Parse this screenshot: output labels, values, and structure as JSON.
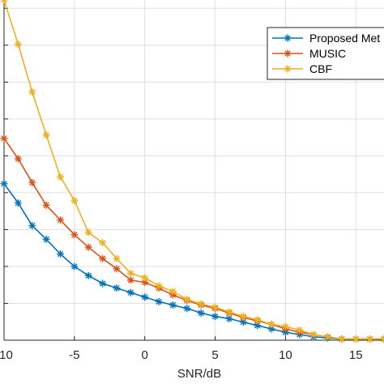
{
  "chart_data": {
    "type": "line",
    "xlabel": "SNR/dB",
    "ylabel": "",
    "xlim": [
      -10,
      17
    ],
    "ylim": [
      0,
      3
    ],
    "xticks": [
      -10,
      -5,
      0,
      5,
      10,
      15
    ],
    "xtick_labels": [
      "-10",
      "-5",
      "0",
      "5",
      "10",
      "15"
    ],
    "grid": true,
    "legend_position": "top-right",
    "x": [
      -10,
      -9,
      -8,
      -7,
      -6,
      -5,
      -4,
      -3,
      -2,
      -1,
      0,
      1,
      2,
      3,
      4,
      5,
      6,
      7,
      8,
      9,
      10,
      11,
      12,
      13,
      14,
      15,
      16,
      17
    ],
    "series": [
      {
        "name": "Proposed Met",
        "color": "#0072BD",
        "marker": "asterisk",
        "values": [
          1.38,
          1.21,
          1.01,
          0.89,
          0.76,
          0.65,
          0.57,
          0.5,
          0.46,
          0.42,
          0.38,
          0.34,
          0.31,
          0.28,
          0.24,
          0.21,
          0.19,
          0.16,
          0.13,
          0.1,
          0.07,
          0.05,
          0.03,
          0.02,
          0.01,
          0.01,
          0.01,
          0.01
        ]
      },
      {
        "name": "MUSIC",
        "color": "#D95319",
        "marker": "asterisk",
        "values": [
          1.78,
          1.6,
          1.39,
          1.19,
          1.06,
          0.93,
          0.82,
          0.72,
          0.63,
          0.53,
          0.51,
          0.46,
          0.4,
          0.35,
          0.31,
          0.28,
          0.24,
          0.2,
          0.17,
          0.14,
          0.1,
          0.07,
          0.05,
          0.03,
          0.01,
          0.01,
          0.01,
          0.01
        ]
      },
      {
        "name": "CBF",
        "color": "#EDB120",
        "marker": "asterisk",
        "values": [
          3.0,
          2.61,
          2.19,
          1.81,
          1.44,
          1.23,
          0.95,
          0.86,
          0.72,
          0.59,
          0.55,
          0.48,
          0.43,
          0.36,
          0.32,
          0.29,
          0.25,
          0.21,
          0.18,
          0.14,
          0.12,
          0.09,
          0.05,
          0.03,
          0.01,
          0.01,
          0.01,
          0.01
        ]
      }
    ]
  }
}
